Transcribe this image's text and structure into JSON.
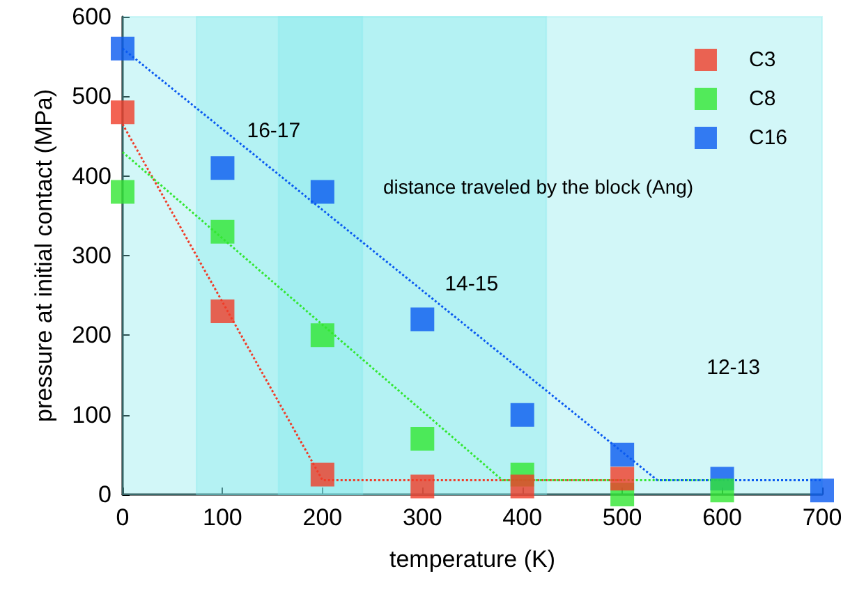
{
  "chart_data": {
    "type": "scatter",
    "xlabel": "temperature (K)",
    "ylabel": "pressure at initial contact (MPa)",
    "xlim": [
      0,
      700
    ],
    "xticks": [
      0,
      100,
      200,
      300,
      400,
      500,
      600,
      700
    ],
    "ylim": [
      0,
      600
    ],
    "yticks": [
      0,
      100,
      200,
      300,
      400,
      500,
      600
    ],
    "marker": "square",
    "grid": false,
    "legend": "top right",
    "series": [
      {
        "name": "C3",
        "color": "#f03c28",
        "x": [
          0,
          100,
          200,
          300,
          400,
          500
        ],
        "values": [
          480,
          230,
          25,
          10,
          10,
          20
        ]
      },
      {
        "name": "C8",
        "color": "#32e632",
        "x": [
          0,
          100,
          200,
          300,
          400,
          500,
          600
        ],
        "values": [
          380,
          330,
          200,
          70,
          25,
          0,
          5
        ]
      },
      {
        "name": "C16",
        "color": "#0a5af0",
        "x": [
          0,
          100,
          200,
          300,
          400,
          500,
          600,
          700
        ],
        "values": [
          560,
          410,
          380,
          220,
          100,
          50,
          20,
          5
        ]
      },
      {
        "type": "line",
        "marker": "none",
        "line_style": "dotted",
        "color": "#f03c28",
        "x": [
          0,
          200,
          500
        ],
        "values": [
          465,
          18,
          18
        ]
      },
      {
        "type": "line",
        "marker": "none",
        "line_style": "dotted",
        "color": "#32e632",
        "x": [
          0,
          380,
          600
        ],
        "values": [
          430,
          18,
          18
        ]
      },
      {
        "type": "line",
        "marker": "none",
        "line_style": "dotted",
        "color": "#0a5af0",
        "x": [
          0,
          535,
          700
        ],
        "values": [
          560,
          18,
          18
        ]
      }
    ],
    "bands": [
      {
        "axis": "x",
        "from": 0,
        "to": 240,
        "label": "16-17",
        "color": "#7fe8ec"
      },
      {
        "axis": "x",
        "from": 74,
        "to": 424,
        "label": "14-15",
        "color": "#7fe8ec"
      },
      {
        "axis": "x",
        "from": 156,
        "to": 700,
        "label": "12-13",
        "color": "#7fe8ec"
      }
    ],
    "annotations": [
      "distance traveled by the block (Ang)"
    ]
  }
}
